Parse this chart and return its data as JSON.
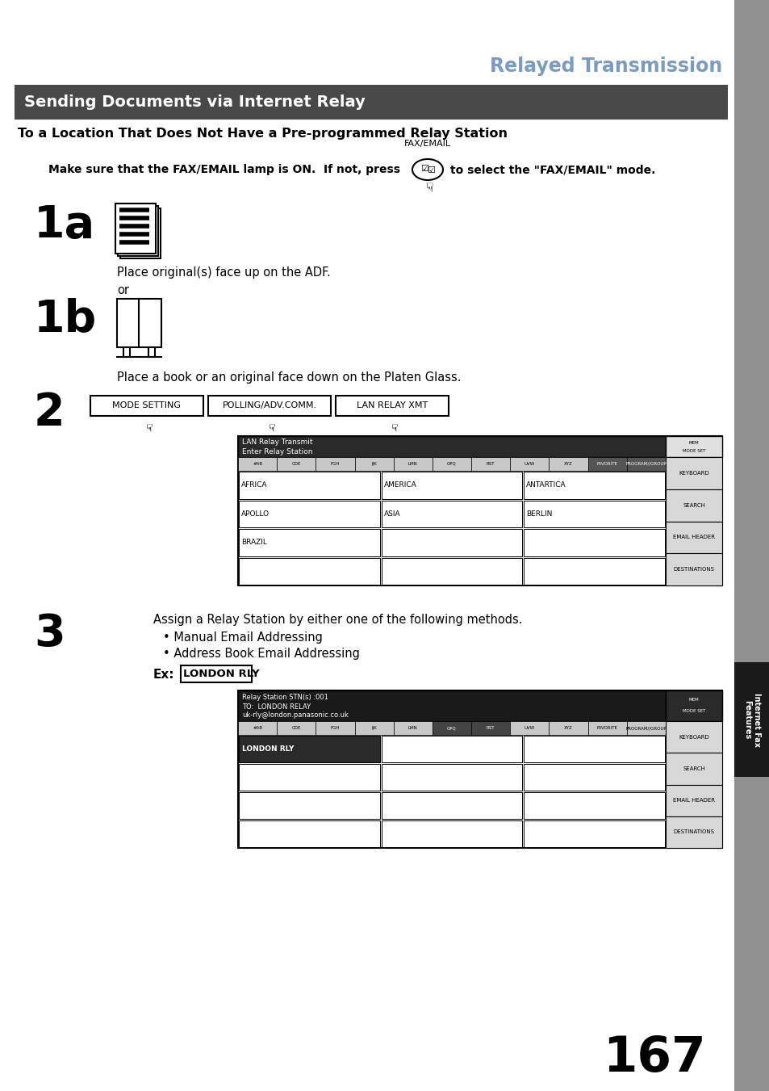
{
  "page_bg": "#ffffff",
  "sidebar_color": "#909090",
  "sidebar_tab_color": "#1a1a1a",
  "header_title": "Relayed Transmission",
  "header_title_color": "#7a9cc0",
  "section_bg": "#484848",
  "section_title": "Sending Documents via Internet Relay",
  "section_title_color": "#ffffff",
  "subtitle": "To a Location That Does Not Have a Pre-programmed Relay Station",
  "fax_email_label": "FAX/EMAIL",
  "make_sure_text": "Make sure that the FAX/EMAIL lamp is ON.  If not, press",
  "make_sure_text2": "to select the \"FAX/EMAIL\" mode.",
  "step1a_label": "1a",
  "step1a_text": "Place original(s) face up on the ADF.",
  "or_text": "or",
  "step1b_label": "1b",
  "step1b_text": "Place a book or an original face down on the Platen Glass.",
  "step2_label": "2",
  "btn1": "MODE SETTING",
  "btn2": "POLLING/ADV.COMM.",
  "btn3": "LAN RELAY XMT",
  "step3_label": "3",
  "step3_text1": "Assign a Relay Station by either one of the following methods.",
  "step3_text2": "• Manual Email Addressing",
  "step3_text3": "• Address Book Email Addressing",
  "ex_label": "Ex:",
  "ex_value": "LONDON RLY",
  "screen1_title1": "LAN Relay Transmit",
  "screen1_title2": "Enter Relay Station",
  "screen1_tabs": [
    "#AB",
    "CDE",
    "FGH",
    "IJK",
    "LMN",
    "OPQ",
    "RST",
    "UVW",
    "XYZ",
    "FAVORITE",
    "PROGRAM/\nGROUP"
  ],
  "screen1_entries": [
    [
      "AFRICA",
      "AMERICA",
      "ANTARTICA"
    ],
    [
      "APOLLO",
      "ASIA",
      "BERLIN"
    ],
    [
      "BRAZIL",
      "",
      ""
    ],
    [
      "",
      "",
      ""
    ]
  ],
  "screen1_side_btns": [
    "KEYBOARD",
    "SEARCH",
    "EMAIL HEADER",
    "DESTINATIONS"
  ],
  "screen2_title1": "Relay Station STN(s) :001",
  "screen2_title2": "TO:  LONDON RELAY",
  "screen2_title3": "uk-rly@london.panasonic.co.uk",
  "screen2_tabs": [
    "#AB",
    "CDE",
    "FGH",
    "IJK",
    "LMN",
    "OPQ",
    "RST",
    "UVW",
    "XYZ",
    "FAVORITE",
    "PROGRAM/\nGROUP"
  ],
  "screen2_entries": [
    [
      "LONDON RLY",
      "",
      ""
    ],
    [
      "",
      "",
      ""
    ],
    [
      "",
      "",
      ""
    ],
    [
      "",
      "",
      ""
    ]
  ],
  "screen2_side_btns": [
    "KEYBOARD",
    "SEARCH",
    "EMAIL HEADER",
    "DESTINATIONS"
  ],
  "page_number": "167",
  "sidebar_text": "Internet Fax\nFeatures"
}
